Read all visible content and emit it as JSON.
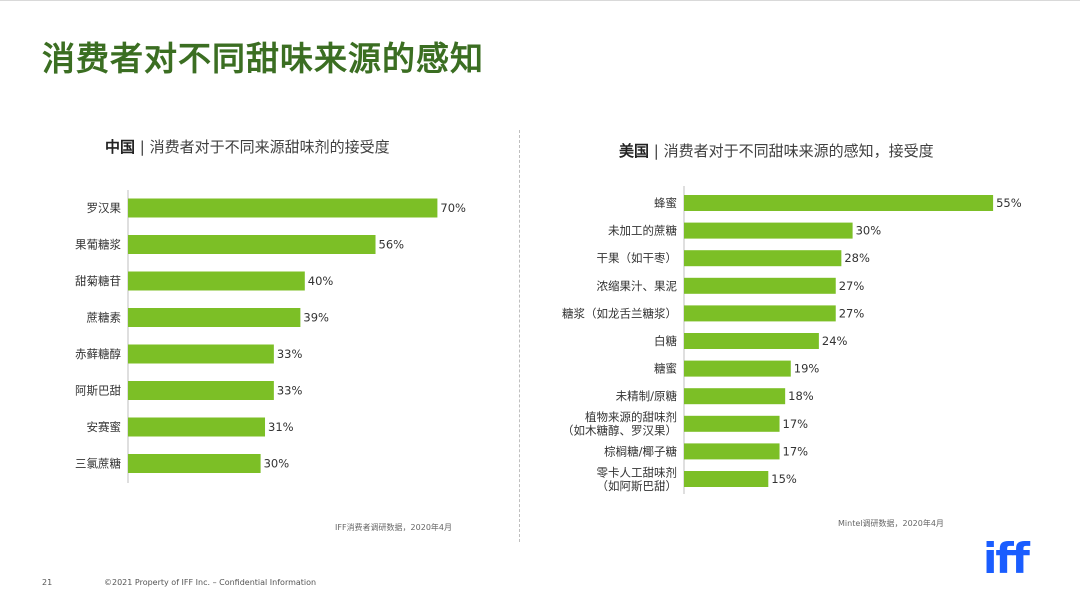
{
  "page": {
    "title": "消费者对不同甜味来源的感知",
    "page_number": "21",
    "copyright": "©2021 Property of IFF Inc. – Confidential Information",
    "logo_text": "iff",
    "accent_color": "#7cbf26",
    "title_color": "#3b6e22",
    "logo_color": "#1a5dff"
  },
  "chart_data": [
    {
      "type": "bar",
      "orientation": "horizontal",
      "title_prefix": "中国",
      "title_rest": "消费者对于不同来源甜味剂的接受度",
      "categories": [
        "罗汉果",
        "果葡糖浆",
        "甜菊糖苷",
        "蔗糖素",
        "赤藓糖醇",
        "阿斯巴甜",
        "安赛蜜",
        "三氯蔗糖"
      ],
      "values": [
        70,
        56,
        40,
        39,
        33,
        33,
        31,
        30
      ],
      "value_labels": [
        "70%",
        "56%",
        "40%",
        "39%",
        "33%",
        "33%",
        "31%",
        "30%"
      ],
      "xlim": [
        0,
        100
      ],
      "source": "IFF消费者调研数据，2020年4月"
    },
    {
      "type": "bar",
      "orientation": "horizontal",
      "title_prefix": "美国",
      "title_rest": "消费者对于不同甜味来源的感知，接受度",
      "categories": [
        "蜂蜜",
        "未加工的蔗糖",
        "干果（如干枣）",
        "浓缩果汁、果泥",
        "糖浆（如龙舌兰糖浆）",
        "白糖",
        "糖蜜",
        "未精制/原糖",
        "植物来源的甜味剂\n（如木糖醇、罗汉果）",
        "棕榈糖/椰子糖",
        "零卡人工甜味剂\n（如阿斯巴甜）"
      ],
      "values": [
        55,
        30,
        28,
        27,
        27,
        24,
        19,
        18,
        17,
        17,
        15
      ],
      "value_labels": [
        "55%",
        "30%",
        "28%",
        "27%",
        "27%",
        "24%",
        "19%",
        "18%",
        "17%",
        "17%",
        "15%"
      ],
      "xlim": [
        0,
        100
      ],
      "source": "Mintel调研数据，2020年4月"
    }
  ]
}
